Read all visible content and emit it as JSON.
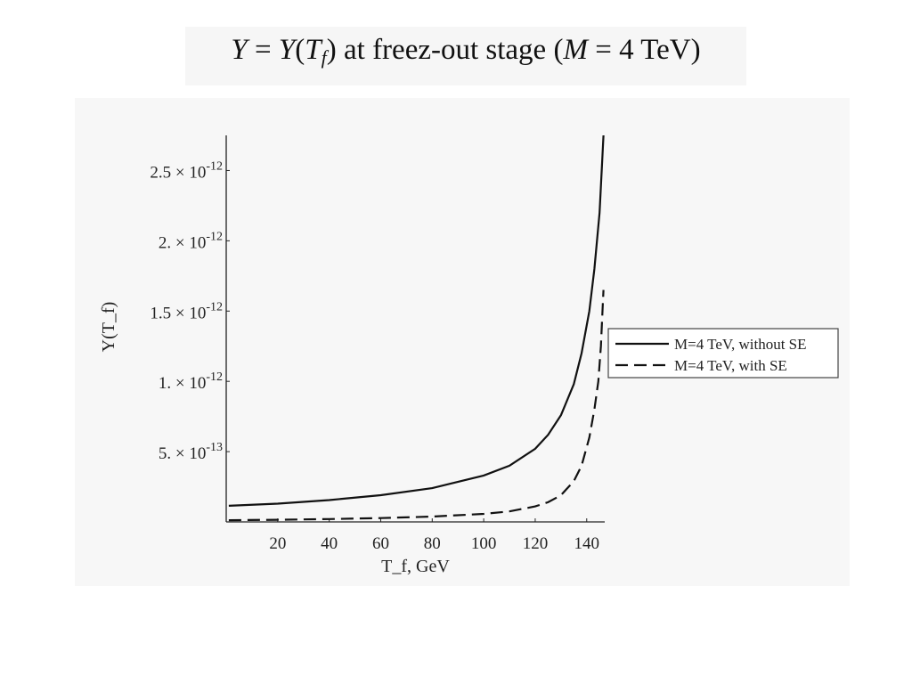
{
  "slide": {
    "title_lhs": "Y",
    "title_eq": "=",
    "title_func": "Y",
    "title_var": "T",
    "title_sub": "f",
    "title_text": "at freez-out stage",
    "title_param": "M",
    "title_value": "= 4 TeV"
  },
  "chart_data": {
    "type": "line",
    "title": "",
    "xlabel": "T_f, GeV",
    "ylabel": "Y(T_f)",
    "xlim": [
      0,
      147
    ],
    "ylim": [
      0,
      2.75e-12
    ],
    "x_ticks": [
      20,
      40,
      60,
      80,
      100,
      120,
      140
    ],
    "x_tick_labels": [
      "20",
      "40",
      "60",
      "80",
      "100",
      "120",
      "140"
    ],
    "y_ticks": [
      5e-13,
      1e-12,
      1.5e-12,
      2e-12,
      2.5e-12
    ],
    "y_tick_mantissas": [
      "5.",
      "1.",
      "1.5",
      "2.",
      "2.5"
    ],
    "y_tick_exponents": [
      "-13",
      "-12",
      "-12",
      "-12",
      "-12"
    ],
    "y_tick_times": "×",
    "y_tick_base": "10",
    "grid": false,
    "legend_position": "right",
    "series": [
      {
        "name": "M=4 TeV, without SE",
        "dash": "solid",
        "color": "#111111",
        "x": [
          1,
          20,
          40,
          60,
          80,
          100,
          110,
          120,
          125,
          130,
          135,
          138,
          141,
          143,
          145,
          146.5
        ],
        "y": [
          1.15e-13,
          1.3e-13,
          1.55e-13,
          1.9e-13,
          2.4e-13,
          3.3e-13,
          4e-13,
          5.2e-13,
          6.2e-13,
          7.6e-13,
          9.8e-13,
          1.2e-12,
          1.5e-12,
          1.8e-12,
          2.2e-12,
          2.75e-12
        ]
      },
      {
        "name": "M=4 TeV, with SE",
        "dash": "dashed",
        "color": "#111111",
        "x": [
          1,
          20,
          40,
          60,
          80,
          100,
          110,
          120,
          125,
          130,
          135,
          138,
          141,
          143,
          144.5,
          145.5,
          146,
          146.5
        ],
        "y": [
          1.2e-14,
          1.5e-14,
          2e-14,
          2.7e-14,
          3.8e-14,
          5.7e-14,
          7.5e-14,
          1.1e-13,
          1.4e-13,
          1.9e-13,
          2.9e-13,
          4e-13,
          6e-13,
          8e-13,
          1e-12,
          1.25e-12,
          1.45e-12,
          1.65e-12
        ]
      }
    ]
  }
}
